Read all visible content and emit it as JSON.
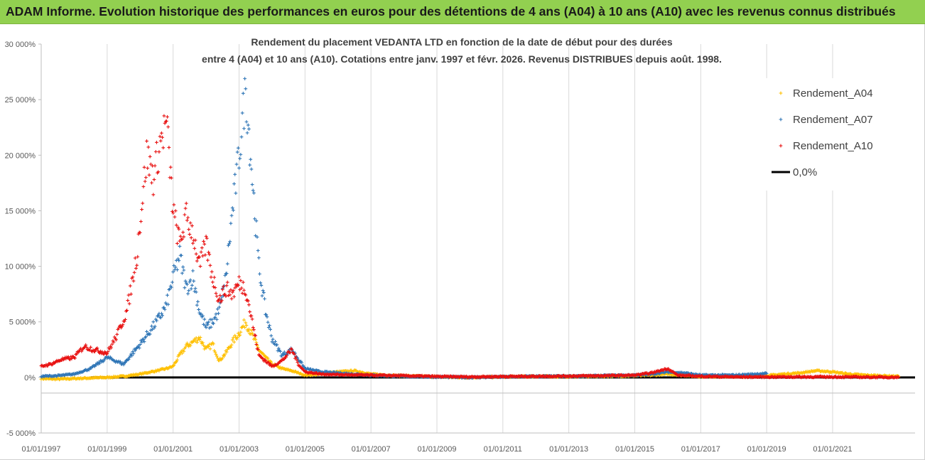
{
  "banner": {
    "title": "ADAM Informe. Evolution historique des performances en euros pour des détentions de 4 ans (A04) à 10 ans (A10) avec les revenus connus distribués"
  },
  "chart_data": {
    "type": "scatter",
    "title_lines": [
      "Rendement du placement VEDANTA LTD en fonction de la date de début pour des durées",
      "entre 4 (A04) et 10 ans (A10). Cotations entre janv. 1997 et févr. 2026. Revenus DISTRIBUES depuis août. 1998."
    ],
    "x_ticks": [
      "01/01/1997",
      "01/01/1999",
      "01/01/2001",
      "01/01/2003",
      "01/01/2005",
      "01/01/2007",
      "01/01/2009",
      "01/01/2011",
      "01/01/2013",
      "01/01/2015",
      "01/01/2017",
      "01/01/2019",
      "01/01/2021"
    ],
    "y_ticks": [
      "30 000%",
      "25 000%",
      "20 000%",
      "15 000%",
      "10 000%",
      "5 000%",
      "0%",
      "-5 000%"
    ],
    "xlim": [
      1997.0,
      2023.5
    ],
    "ylim": [
      -5000,
      30000
    ],
    "grid": "vertical",
    "legend_position": "top-right",
    "series": [
      {
        "name": "Rendement_A04",
        "color": "#ffc000",
        "points": [
          [
            1997.0,
            -100
          ],
          [
            1997.5,
            -150
          ],
          [
            1998.0,
            -100
          ],
          [
            1998.5,
            -50
          ],
          [
            1999.0,
            0
          ],
          [
            1999.5,
            100
          ],
          [
            2000.0,
            300
          ],
          [
            2000.5,
            600
          ],
          [
            2000.8,
            800
          ],
          [
            2001.0,
            1000
          ],
          [
            2001.2,
            2000
          ],
          [
            2001.4,
            2800
          ],
          [
            2001.6,
            3200
          ],
          [
            2001.8,
            3600
          ],
          [
            2002.0,
            2500
          ],
          [
            2002.2,
            3000
          ],
          [
            2002.4,
            1500
          ],
          [
            2002.6,
            2200
          ],
          [
            2002.8,
            3200
          ],
          [
            2003.0,
            4000
          ],
          [
            2003.2,
            5000
          ],
          [
            2003.4,
            3800
          ],
          [
            2003.6,
            2500
          ],
          [
            2003.8,
            1800
          ],
          [
            2004.0,
            1200
          ],
          [
            2004.3,
            800
          ],
          [
            2004.6,
            600
          ],
          [
            2005.0,
            200
          ],
          [
            2005.5,
            300
          ],
          [
            2006.0,
            500
          ],
          [
            2006.5,
            600
          ],
          [
            2007.0,
            300
          ],
          [
            2007.5,
            200
          ],
          [
            2008.0,
            150
          ],
          [
            2009.0,
            50
          ],
          [
            2010.0,
            0
          ],
          [
            2011.0,
            50
          ],
          [
            2012.0,
            100
          ],
          [
            2013.0,
            80
          ],
          [
            2014.0,
            120
          ],
          [
            2015.0,
            150
          ],
          [
            2015.5,
            200
          ],
          [
            2016.0,
            300
          ],
          [
            2016.5,
            200
          ],
          [
            2017.0,
            100
          ],
          [
            2018.0,
            100
          ],
          [
            2019.0,
            150
          ],
          [
            2019.5,
            300
          ],
          [
            2020.0,
            400
          ],
          [
            2020.5,
            600
          ],
          [
            2021.0,
            500
          ],
          [
            2021.5,
            300
          ],
          [
            2022.0,
            200
          ],
          [
            2023.0,
            100
          ]
        ]
      },
      {
        "name": "Rendement_A07",
        "color": "#2e75b6",
        "points": [
          [
            1997.0,
            100
          ],
          [
            1997.5,
            150
          ],
          [
            1998.0,
            300
          ],
          [
            1998.5,
            800
          ],
          [
            1999.0,
            1800
          ],
          [
            1999.5,
            1200
          ],
          [
            2000.0,
            3000
          ],
          [
            2000.5,
            5000
          ],
          [
            2000.8,
            6500
          ],
          [
            2001.0,
            9000
          ],
          [
            2001.2,
            11000
          ],
          [
            2001.4,
            8000
          ],
          [
            2001.6,
            9000
          ],
          [
            2001.8,
            6000
          ],
          [
            2002.0,
            4500
          ],
          [
            2002.2,
            5000
          ],
          [
            2002.4,
            6000
          ],
          [
            2002.6,
            9000
          ],
          [
            2002.8,
            15000
          ],
          [
            2003.0,
            20000
          ],
          [
            2003.2,
            26000
          ],
          [
            2003.4,
            18000
          ],
          [
            2003.6,
            10000
          ],
          [
            2003.8,
            6000
          ],
          [
            2004.0,
            3500
          ],
          [
            2004.3,
            2000
          ],
          [
            2004.6,
            2500
          ],
          [
            2005.0,
            800
          ],
          [
            2005.5,
            500
          ],
          [
            2006.0,
            400
          ],
          [
            2006.5,
            300
          ],
          [
            2007.0,
            200
          ],
          [
            2007.5,
            150
          ],
          [
            2008.0,
            100
          ],
          [
            2009.0,
            50
          ],
          [
            2010.0,
            0
          ],
          [
            2011.0,
            50
          ],
          [
            2012.0,
            100
          ],
          [
            2013.0,
            100
          ],
          [
            2014.0,
            150
          ],
          [
            2015.0,
            200
          ],
          [
            2015.5,
            300
          ],
          [
            2016.0,
            500
          ],
          [
            2016.5,
            400
          ],
          [
            2017.0,
            200
          ],
          [
            2018.0,
            200
          ],
          [
            2019.0,
            350
          ]
        ]
      },
      {
        "name": "Rendement_A10",
        "color": "#e81010",
        "points": [
          [
            1997.0,
            1000
          ],
          [
            1997.3,
            1200
          ],
          [
            1997.6,
            1600
          ],
          [
            1998.0,
            1800
          ],
          [
            1998.3,
            2800
          ],
          [
            1998.6,
            2500
          ],
          [
            1999.0,
            2200
          ],
          [
            1999.3,
            3800
          ],
          [
            1999.6,
            6000
          ],
          [
            1999.9,
            11000
          ],
          [
            2000.0,
            14000
          ],
          [
            2000.2,
            20000
          ],
          [
            2000.4,
            18000
          ],
          [
            2000.6,
            21000
          ],
          [
            2000.8,
            23000
          ],
          [
            2001.0,
            15000
          ],
          [
            2001.2,
            12000
          ],
          [
            2001.4,
            14500
          ],
          [
            2001.6,
            13000
          ],
          [
            2001.8,
            10000
          ],
          [
            2002.0,
            12000
          ],
          [
            2002.2,
            9000
          ],
          [
            2002.4,
            7000
          ],
          [
            2002.6,
            8000
          ],
          [
            2002.8,
            7500
          ],
          [
            2003.0,
            8500
          ],
          [
            2003.2,
            8000
          ],
          [
            2003.4,
            5000
          ],
          [
            2003.6,
            2000
          ],
          [
            2003.8,
            1500
          ],
          [
            2004.0,
            1000
          ],
          [
            2004.3,
            1500
          ],
          [
            2004.6,
            2500
          ],
          [
            2004.8,
            1200
          ],
          [
            2005.0,
            500
          ],
          [
            2005.5,
            300
          ],
          [
            2006.0,
            250
          ],
          [
            2007.0,
            200
          ],
          [
            2008.0,
            150
          ],
          [
            2009.0,
            80
          ],
          [
            2010.0,
            50
          ],
          [
            2011.0,
            80
          ],
          [
            2012.0,
            100
          ],
          [
            2013.0,
            120
          ],
          [
            2014.0,
            150
          ],
          [
            2015.0,
            200
          ],
          [
            2015.5,
            400
          ],
          [
            2016.0,
            800
          ],
          [
            2016.3,
            200
          ],
          [
            2017.0,
            100
          ],
          [
            2018.0,
            50
          ],
          [
            2019.0,
            50
          ],
          [
            2020.0,
            50
          ],
          [
            2021.0,
            50
          ],
          [
            2022.0,
            30
          ],
          [
            2023.0,
            20
          ]
        ]
      },
      {
        "name": "0,0%",
        "color": "#000000",
        "line": [
          [
            1998.5,
            0
          ],
          [
            2023.5,
            0
          ]
        ]
      }
    ]
  }
}
